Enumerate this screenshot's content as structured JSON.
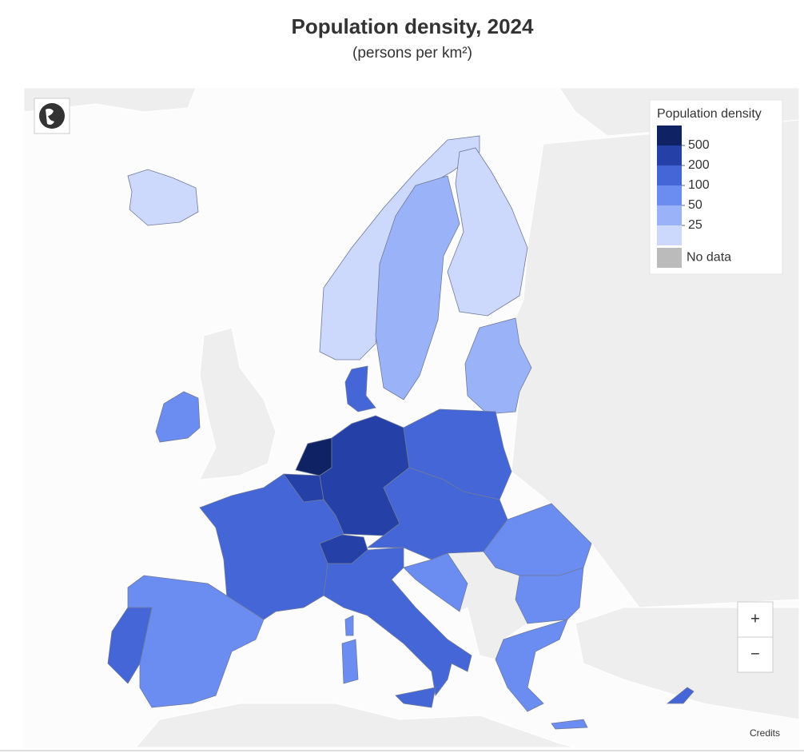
{
  "header": {
    "title": "Population density, 2024",
    "subtitle": "(persons per km²)"
  },
  "legend": {
    "title": "Population density",
    "classes": [
      "#0f2263",
      "#2541a8",
      "#4466d6",
      "#6b8cf0",
      "#9ab2f8",
      "#ccd8fc"
    ],
    "breaks": [
      500,
      200,
      100,
      50,
      25
    ],
    "no_data": {
      "label": "No data",
      "color": "#bbbbbb"
    }
  },
  "controls": {
    "zoom_in": "+",
    "zoom_out": "−",
    "credits": "Credits"
  }
}
